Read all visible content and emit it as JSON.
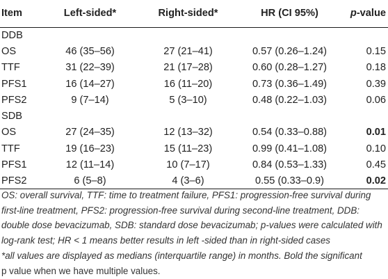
{
  "table": {
    "headers": {
      "item": "Item",
      "left": "Left-sided*",
      "right": "Right-sided*",
      "hr": "HR (CI 95%)",
      "p_italic": "p",
      "p_suffix": "-value"
    },
    "rows": [
      {
        "type": "group",
        "item": "DDB"
      },
      {
        "type": "data",
        "item": "OS",
        "left": "46 (35–56)",
        "right": "27 (21–41)",
        "hr": "0.57 (0.26–1.24)",
        "p": "0.15",
        "p_bold": false
      },
      {
        "type": "data",
        "item": "TTF",
        "left": "31 (22–39)",
        "right": "21 (17–28)",
        "hr": "0.60 (0.28–1.27)",
        "p": "0.18",
        "p_bold": false
      },
      {
        "type": "data",
        "item": "PFS1",
        "left": "16 (14–27)",
        "right": "16 (11–20)",
        "hr": "0.73 (0.36–1.49)",
        "p": "0.39",
        "p_bold": false
      },
      {
        "type": "data",
        "item": "PFS2",
        "left": "9 (7–14)",
        "right": "5 (3–10)",
        "hr": "0.48 (0.22–1.03)",
        "p": "0.06",
        "p_bold": false
      },
      {
        "type": "group",
        "item": "SDB"
      },
      {
        "type": "data",
        "item": "OS",
        "left": "27 (24–35)",
        "right": "12 (13–32)",
        "hr": "0.54 (0.33–0.88)",
        "p": "0.01",
        "p_bold": true
      },
      {
        "type": "data",
        "item": "TTF",
        "left": "19 (16–23)",
        "right": "15 (11–23)",
        "hr": "0.99 (0.41–1.08)",
        "p": "0.10",
        "p_bold": false
      },
      {
        "type": "data",
        "item": "PFS1",
        "left": "12 (11–14)",
        "right": "10 (7–17)",
        "hr": "0.84 (0.53–1.33)",
        "p": "0.45",
        "p_bold": false
      },
      {
        "type": "data",
        "item": "PFS2",
        "left": "6 (5–8)",
        "right": "4 (3–6)",
        "hr": "0.55 (0.33–0.9)",
        "p": "0.02",
        "p_bold": true
      }
    ]
  },
  "footnote": {
    "line1": "OS: overall survival, TTF: time to treatment failure, PFS1: progression-free survival during first-line treatment, PFS2: progression-free survival during second-line treatment, DDB: double dose bevacizumab, SDB: standard dose bevacizumab; p-values were calculated with log-rank test; HR < 1 means better results in left -sided than in right-sided cases",
    "line2": "*all values are displayed as medians (interquartile range) in months. Bold the significant",
    "line3": "p value when we have multiple values."
  }
}
